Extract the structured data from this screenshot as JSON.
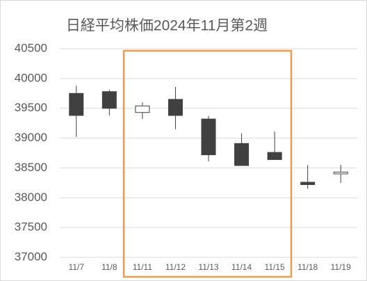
{
  "chart_data": {
    "type": "candlestick",
    "title": "日経平均株価2024年11月第2週",
    "categories": [
      "11/7",
      "11/8",
      "11/11",
      "11/12",
      "11/13",
      "11/14",
      "11/15",
      "11/18",
      "11/19"
    ],
    "open": [
      39750,
      39780,
      39430,
      39650,
      39320,
      38910,
      38760,
      38260,
      38400
    ],
    "high": [
      39880,
      39810,
      39600,
      39860,
      39370,
      39080,
      39110,
      38550,
      38550
    ],
    "low": [
      39020,
      39380,
      39320,
      39150,
      38610,
      38540,
      38640,
      38150,
      38250
    ],
    "close": [
      39380,
      39500,
      39540,
      39380,
      38720,
      38540,
      38640,
      38220,
      38430
    ],
    "up_color": "#ffffff",
    "down_color": "#404040",
    "ylim": [
      37000,
      40500
    ],
    "yticks": [
      37000,
      37500,
      38000,
      38500,
      39000,
      39500,
      40000,
      40500
    ],
    "grid": true
  }
}
